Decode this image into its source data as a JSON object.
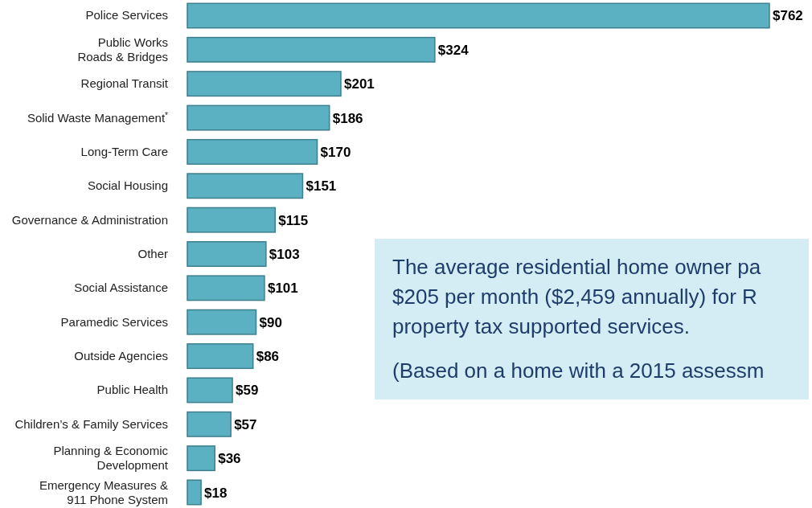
{
  "chart_data": {
    "type": "bar",
    "orientation": "horizontal",
    "categories": [
      "Police Services",
      "Public Works\nRoads & Bridges",
      "Regional Transit",
      "Solid Waste Management$^{*}$",
      "Long-Term Care",
      "Social Housing",
      "Governance & Administration",
      "Other",
      "Social Assistance",
      "Paramedic Services",
      "Outside Agencies",
      "Public Health",
      "Children’s & Family Services",
      "Planning & Economic\nDevelopment",
      "Emergency Measures &\n911 Phone System"
    ],
    "values": [
      762,
      324,
      201,
      186,
      170,
      151,
      115,
      103,
      101,
      90,
      86,
      59,
      57,
      36,
      18
    ],
    "value_labels": [
      "$762",
      "$324",
      "$201",
      "$186",
      "$170",
      "$151",
      "$115",
      "$103",
      "$101",
      "$90",
      "$86",
      "$59",
      "$57",
      "$36",
      "$18"
    ],
    "color": "#5bb1c1",
    "annotations": [
      "The average residential home owner pa",
      "$205 per month ($2,459 annually) for R",
      "property tax supported services.",
      "(Based on a home with a 2015 assessm"
    ]
  }
}
